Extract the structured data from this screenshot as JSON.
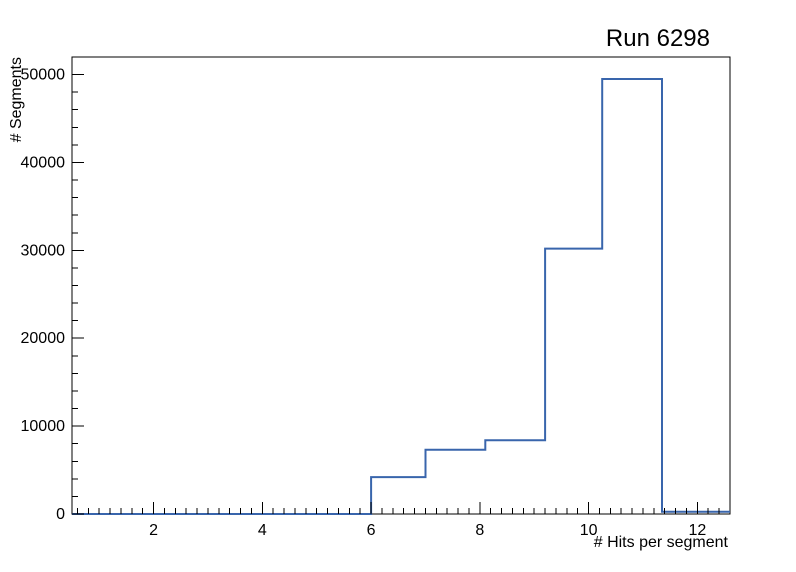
{
  "title": "Run 6298",
  "chart_data": {
    "type": "histogram-step",
    "title": "Run 6298",
    "xlabel": "# Hits per segment",
    "ylabel": "# Segments",
    "xlim": [
      0.5,
      12.6
    ],
    "ylim": [
      0,
      52000
    ],
    "x_major_ticks": [
      2,
      4,
      6,
      8,
      10,
      12
    ],
    "x_tick_labels": [
      "2",
      "4",
      "6",
      "8",
      "10",
      "12"
    ],
    "x_minor_step": 0.2,
    "y_major_ticks": [
      0,
      10000,
      20000,
      30000,
      40000,
      50000
    ],
    "y_tick_labels": [
      "0",
      "10000",
      "20000",
      "30000",
      "40000",
      "50000"
    ],
    "y_minor_step": 2000,
    "bin_edges": [
      0.5,
      6.0,
      7.0,
      8.1,
      9.2,
      10.25,
      11.35,
      12.6
    ],
    "bin_values": [
      0,
      4200,
      7300,
      8400,
      30200,
      49500,
      250
    ],
    "line_color": "#3965ac",
    "frame_color": "#000000",
    "background": "#ffffff",
    "legend": "none",
    "grid": "off"
  }
}
